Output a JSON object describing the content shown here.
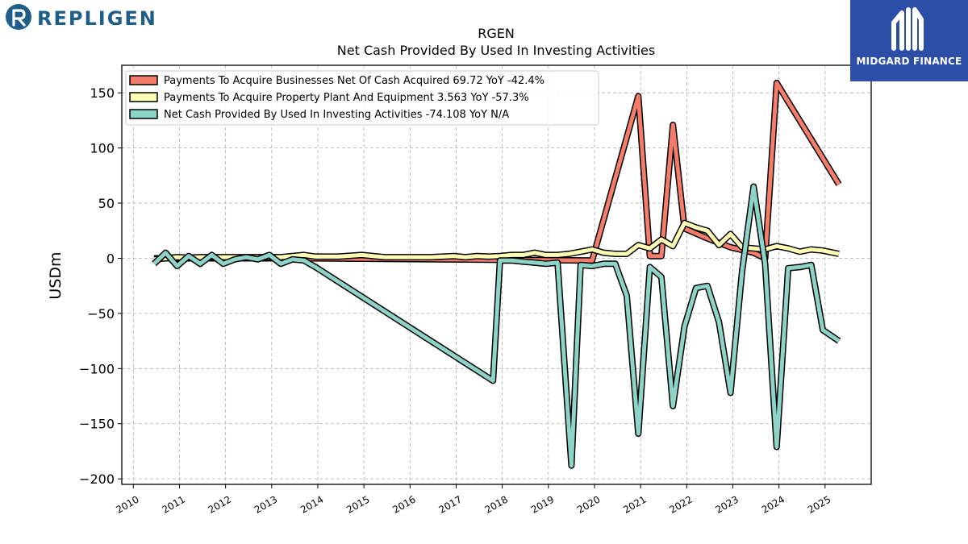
{
  "brand": {
    "left_logo_text": "REPLIGEN",
    "right_logo_text": "MIDGARD FINANCE"
  },
  "colors": {
    "businesses": "#f47c6b",
    "ppe": "#fdfcb4",
    "net": "#8dd3c7"
  },
  "chart_data": {
    "type": "line",
    "title": "RGEN",
    "subtitle": "Net Cash Provided By Used In Investing Activities",
    "ylabel": "USDm",
    "xlabel": "",
    "ylim": [
      -205,
      175
    ],
    "xlim": [
      2009.75,
      2026.0
    ],
    "yticks": [
      150,
      100,
      50,
      0,
      -50,
      -100,
      -150,
      -200
    ],
    "ytick_labels": [
      "150",
      "100",
      "50",
      "0",
      "−50",
      "−100",
      "−150",
      "−200"
    ],
    "xticks": [
      "2010",
      "2011",
      "2012",
      "2013",
      "2014",
      "2015",
      "2016",
      "2017",
      "2018",
      "2019",
      "2020",
      "2021",
      "2022",
      "2023",
      "2024",
      "2025"
    ],
    "grid": true,
    "legend_position": "top-left",
    "series": [
      {
        "name": "Payments To Acquire Businesses Net Of Cash Acquired",
        "legend_label": "Payments To Acquire Businesses Net Of Cash Acquired  69.72 YoY -42.4%",
        "color": "#f47c6b",
        "points": [
          [
            2010.45,
            0
          ],
          [
            2010.7,
            0
          ],
          [
            2010.95,
            0
          ],
          [
            2011.2,
            0
          ],
          [
            2011.45,
            0
          ],
          [
            2011.7,
            0
          ],
          [
            2011.95,
            0
          ],
          [
            2012.2,
            0
          ],
          [
            2012.45,
            0
          ],
          [
            2012.7,
            0
          ],
          [
            2012.95,
            0
          ],
          [
            2013.2,
            0
          ],
          [
            2013.45,
            0
          ],
          [
            2013.7,
            0
          ],
          [
            2019.95,
            -2
          ],
          [
            2020.95,
            147
          ],
          [
            2021.2,
            2
          ],
          [
            2021.45,
            2
          ],
          [
            2021.7,
            121
          ],
          [
            2021.95,
            27
          ],
          [
            2022.45,
            18
          ],
          [
            2022.95,
            10
          ],
          [
            2023.45,
            5
          ],
          [
            2023.7,
            0
          ],
          [
            2023.95,
            159
          ],
          [
            2025.3,
            67
          ]
        ]
      },
      {
        "name": "Payments To Acquire Property Plant And Equipment",
        "legend_label": "Payments To Acquire Property Plant And Equipment  3.563 YoY -57.3%",
        "color": "#fdfcb4",
        "points": [
          [
            2010.45,
            -1
          ],
          [
            2010.7,
            0
          ],
          [
            2010.95,
            1
          ],
          [
            2011.2,
            0.5
          ],
          [
            2011.45,
            1
          ],
          [
            2011.7,
            1
          ],
          [
            2011.95,
            1
          ],
          [
            2012.2,
            1
          ],
          [
            2012.45,
            1
          ],
          [
            2012.7,
            1
          ],
          [
            2012.95,
            1
          ],
          [
            2013.2,
            1
          ],
          [
            2013.45,
            2
          ],
          [
            2013.7,
            3
          ],
          [
            2013.95,
            1.5
          ],
          [
            2014.45,
            1.5
          ],
          [
            2014.95,
            3
          ],
          [
            2015.45,
            1
          ],
          [
            2015.95,
            1
          ],
          [
            2016.45,
            1
          ],
          [
            2016.95,
            2
          ],
          [
            2017.2,
            1
          ],
          [
            2017.45,
            2
          ],
          [
            2017.7,
            1.5
          ],
          [
            2017.95,
            2
          ],
          [
            2018.2,
            3
          ],
          [
            2018.45,
            3
          ],
          [
            2018.7,
            5
          ],
          [
            2018.95,
            3
          ],
          [
            2019.2,
            3
          ],
          [
            2019.45,
            4
          ],
          [
            2019.7,
            6
          ],
          [
            2019.95,
            8
          ],
          [
            2020.2,
            5
          ],
          [
            2020.45,
            4
          ],
          [
            2020.7,
            4
          ],
          [
            2020.95,
            12
          ],
          [
            2021.2,
            9
          ],
          [
            2021.45,
            17
          ],
          [
            2021.7,
            11
          ],
          [
            2021.95,
            32
          ],
          [
            2022.2,
            28
          ],
          [
            2022.45,
            25
          ],
          [
            2022.7,
            12
          ],
          [
            2022.95,
            22
          ],
          [
            2023.2,
            10
          ],
          [
            2023.45,
            9
          ],
          [
            2023.7,
            8
          ],
          [
            2023.95,
            11
          ],
          [
            2024.2,
            9
          ],
          [
            2024.45,
            6
          ],
          [
            2024.7,
            8
          ],
          [
            2024.95,
            7
          ],
          [
            2025.3,
            4
          ]
        ]
      },
      {
        "name": "Net Cash Provided By Used In Investing Activities",
        "legend_label": "Net Cash Provided By Used In Investing Activities  -74.108 YoY N/A",
        "color": "#8dd3c7",
        "points": [
          [
            2010.45,
            -5
          ],
          [
            2010.7,
            5
          ],
          [
            2010.95,
            -7
          ],
          [
            2011.2,
            2
          ],
          [
            2011.45,
            -5
          ],
          [
            2011.7,
            3
          ],
          [
            2011.95,
            -5
          ],
          [
            2012.2,
            -1
          ],
          [
            2012.45,
            1
          ],
          [
            2012.7,
            -1
          ],
          [
            2012.95,
            3
          ],
          [
            2013.2,
            -5
          ],
          [
            2013.45,
            -1
          ],
          [
            2013.7,
            -2
          ],
          [
            2013.95,
            -8
          ],
          [
            2017.8,
            -111
          ],
          [
            2017.95,
            -2
          ],
          [
            2018.2,
            -2
          ],
          [
            2018.45,
            -3
          ],
          [
            2018.7,
            -4
          ],
          [
            2018.95,
            -5
          ],
          [
            2019.2,
            -4
          ],
          [
            2019.5,
            -188
          ],
          [
            2019.7,
            -6
          ],
          [
            2019.95,
            -7
          ],
          [
            2020.2,
            -5
          ],
          [
            2020.45,
            -5
          ],
          [
            2020.7,
            -34
          ],
          [
            2020.95,
            -159
          ],
          [
            2021.2,
            -8
          ],
          [
            2021.45,
            -17
          ],
          [
            2021.7,
            -134
          ],
          [
            2021.95,
            -62
          ],
          [
            2022.2,
            -27
          ],
          [
            2022.45,
            -25
          ],
          [
            2022.7,
            -58
          ],
          [
            2022.95,
            -122
          ],
          [
            2023.2,
            -12
          ],
          [
            2023.45,
            65
          ],
          [
            2023.7,
            -5
          ],
          [
            2023.95,
            -171
          ],
          [
            2024.2,
            -9
          ],
          [
            2024.45,
            -8
          ],
          [
            2024.7,
            -6
          ],
          [
            2024.95,
            -65
          ],
          [
            2025.3,
            -75
          ]
        ]
      }
    ]
  }
}
